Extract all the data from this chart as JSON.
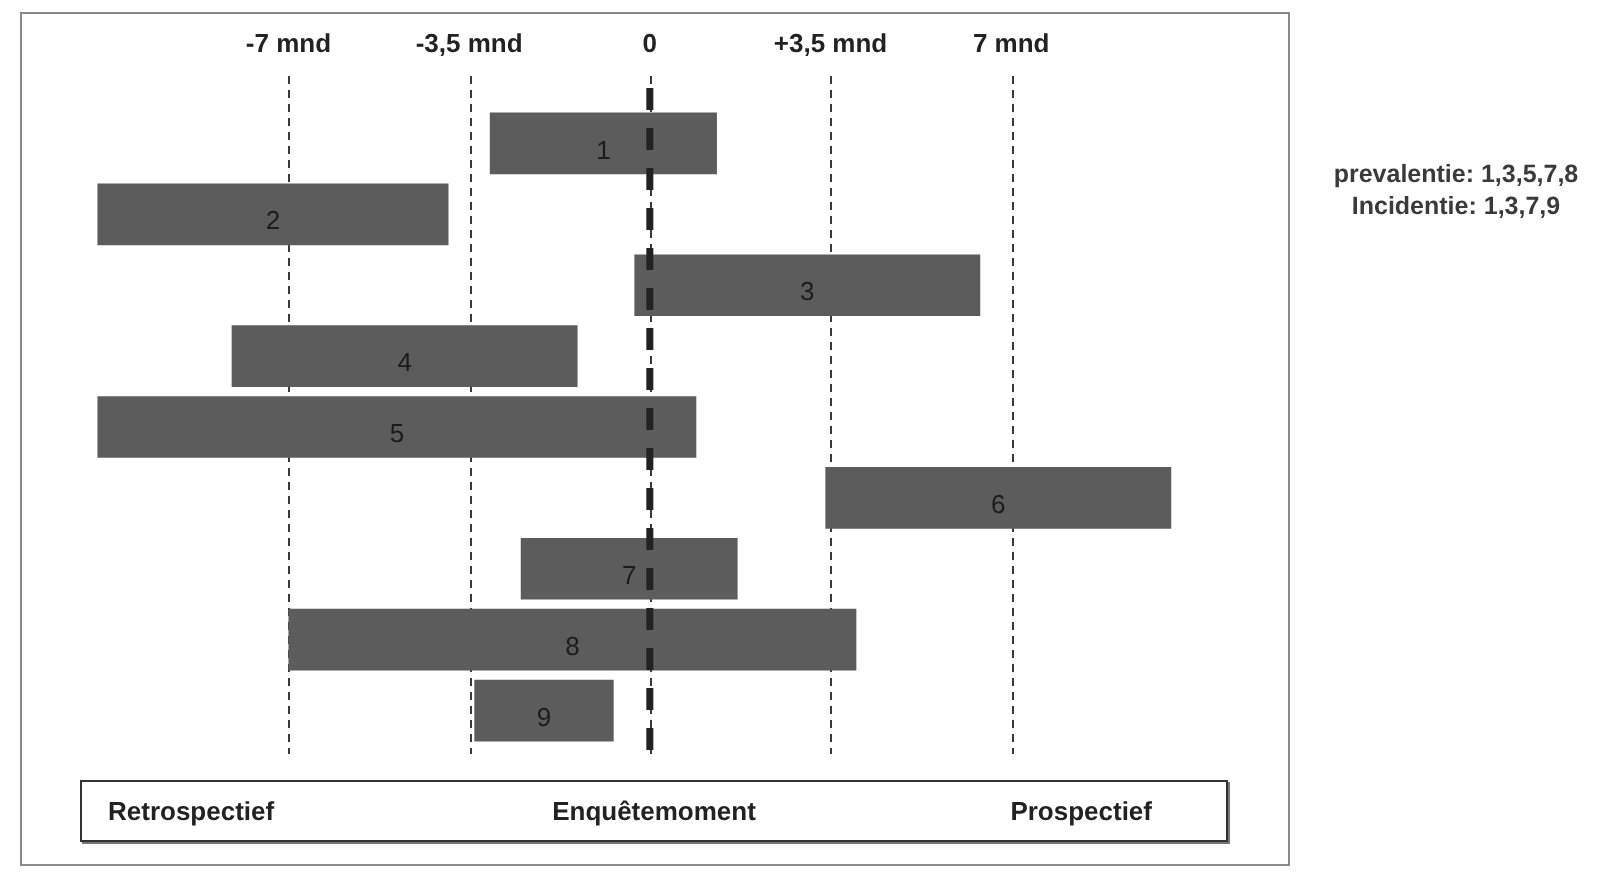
{
  "chart_data": {
    "type": "bar",
    "orientation": "horizontal",
    "categories": [
      "1",
      "2",
      "3",
      "4",
      "5",
      "6",
      "7",
      "8",
      "9"
    ],
    "base": [
      -3.1,
      -10.7,
      -0.3,
      -8.1,
      -10.7,
      3.4,
      -2.5,
      -7,
      -3.4
    ],
    "values": [
      4.4,
      6.8,
      6.7,
      6.7,
      11.6,
      6.7,
      4.2,
      11,
      2.7
    ],
    "color": "#5c5c5c",
    "xlim": [
      -12.2,
      12.4
    ],
    "xticks": [
      {
        "value": -7,
        "label": "-7 mnd"
      },
      {
        "value": -3.5,
        "label": "-3,5 mnd"
      },
      0,
      {
        "value": 3.5,
        "label": "+3,5 mnd"
      },
      {
        "value": 7,
        "label": "7 mnd"
      }
    ],
    "grid": "x",
    "ref_lines": [
      {
        "axis": "x",
        "value": 0,
        "line_style": "dashed",
        "color": "#222222"
      }
    ],
    "annotations": [
      "prevalentie: 1,3,5,7,8",
      "Incidentie: 1,3,7,9",
      "Retrospectief",
      "Enquêtemoment",
      "Prospectief"
    ]
  }
}
